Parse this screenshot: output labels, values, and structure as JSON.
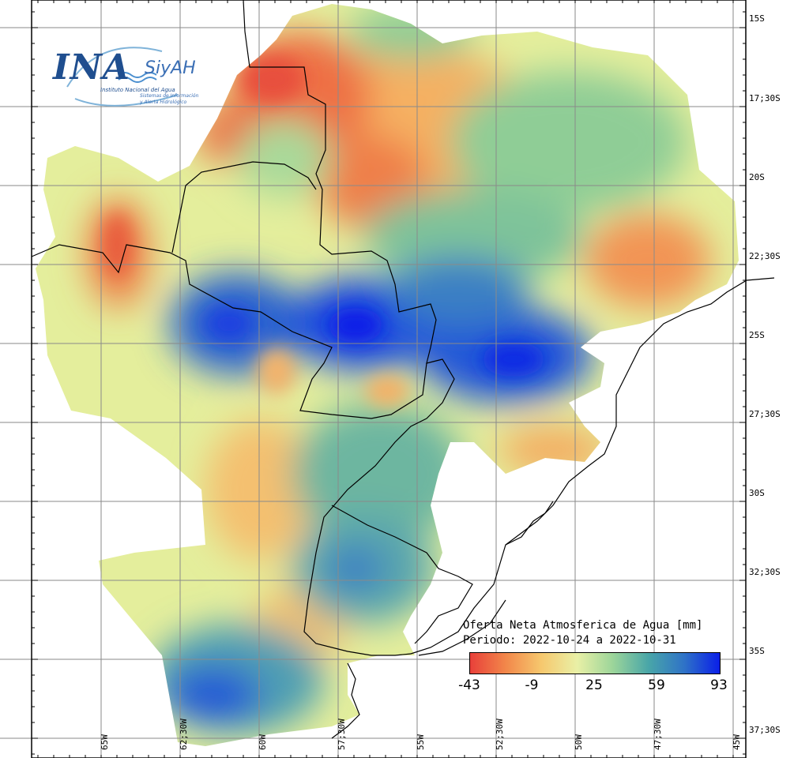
{
  "logo": {
    "ina": "INA",
    "siyah": "SiyAH",
    "institute": "Instituto Nacional del Agua",
    "system_line1": "Sistemas de Información",
    "system_line2": "y Alerta Hidrológico"
  },
  "legend": {
    "title": "Oferta Neta Atmosferica de Agua [mm]",
    "period": "Periodo: 2022-10-24 a 2022-10-31",
    "ticks": [
      "-43",
      "-9",
      "25",
      "59",
      "93"
    ],
    "colors": [
      "#e8403a",
      "#f2874a",
      "#f6c86e",
      "#e9f0a6",
      "#9cd59a",
      "#49a6a8",
      "#2f73c7",
      "#0a1fe8"
    ]
  },
  "lat_labels": [
    "15S",
    "17;30S",
    "20S",
    "22;30S",
    "25S",
    "27;30S",
    "30S",
    "32;30S",
    "35S",
    "37;30S"
  ],
  "lon_labels": [
    "65W",
    "62;30W",
    "60W",
    "57;30W",
    "55W",
    "52;30W",
    "50W",
    "47;30W",
    "45W"
  ]
}
